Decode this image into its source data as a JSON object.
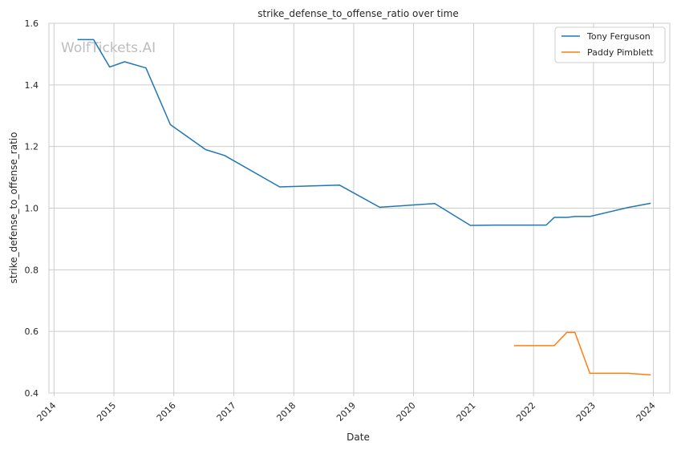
{
  "chart_data": {
    "type": "line",
    "title": "strike_defense_to_offense_ratio over time",
    "xlabel": "Date",
    "ylabel": "strike_defense_to_offense_ratio",
    "watermark": "WolfTickets.AI",
    "xlim": [
      "2013-12-01",
      "2024-04-10"
    ],
    "ylim": [
      0.4,
      1.6
    ],
    "x_ticks": [
      "2014",
      "2015",
      "2016",
      "2017",
      "2018",
      "2019",
      "2020",
      "2021",
      "2022",
      "2023",
      "2024"
    ],
    "y_ticks": [
      "0.4",
      "0.6",
      "0.8",
      "1.0",
      "1.2",
      "1.4",
      "1.6"
    ],
    "grid": true,
    "legend_position": "top-right",
    "series": [
      {
        "name": "Tony Ferguson",
        "color": "#1f77b4",
        "points": [
          [
            "2014-05-24",
            1.547
          ],
          [
            "2014-08-30",
            1.547
          ],
          [
            "2014-12-06",
            1.458
          ],
          [
            "2015-03-07",
            1.475
          ],
          [
            "2015-07-15",
            1.455
          ],
          [
            "2015-12-11",
            1.271
          ],
          [
            "2016-07-13",
            1.19
          ],
          [
            "2016-11-05",
            1.171
          ],
          [
            "2017-10-07",
            1.069
          ],
          [
            "2018-10-06",
            1.075
          ],
          [
            "2019-06-08",
            1.003
          ],
          [
            "2020-05-09",
            1.015
          ],
          [
            "2020-12-12",
            0.944
          ],
          [
            "2021-05-15",
            0.945
          ],
          [
            "2022-03-19",
            0.945
          ],
          [
            "2022-05-07",
            0.97
          ],
          [
            "2022-07-25",
            0.97
          ],
          [
            "2022-09-10",
            0.973
          ],
          [
            "2022-12-10",
            0.973
          ],
          [
            "2023-07-29",
            1.002
          ],
          [
            "2023-12-16",
            1.016
          ]
        ]
      },
      {
        "name": "Paddy Pimblett",
        "color": "#ff7f0e",
        "points": [
          [
            "2021-09-04",
            0.554
          ],
          [
            "2022-03-19",
            0.554
          ],
          [
            "2022-05-07",
            0.554
          ],
          [
            "2022-07-23",
            0.597
          ],
          [
            "2022-09-10",
            0.597
          ],
          [
            "2022-12-10",
            0.464
          ],
          [
            "2023-07-29",
            0.464
          ],
          [
            "2023-12-16",
            0.459
          ]
        ]
      }
    ]
  }
}
